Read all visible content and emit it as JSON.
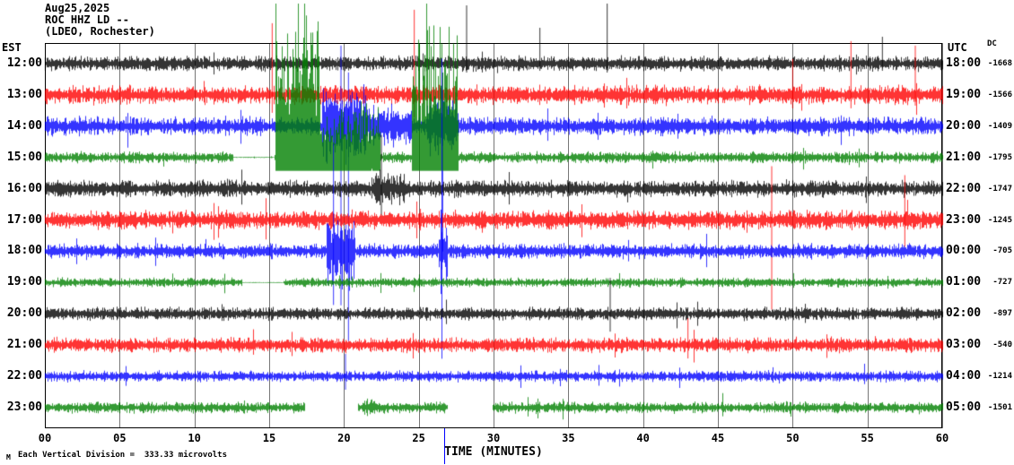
{
  "header": {
    "date": "Aug25,2025",
    "station": "ROC HHZ LD --",
    "location": "(LDEO, Rochester)"
  },
  "axes": {
    "left_label": "EST",
    "right_label": "UTC",
    "dc_label": "DC",
    "x_label": "TIME (MINUTES)",
    "x_ticks": [
      "00",
      "05",
      "10",
      "15",
      "20",
      "25",
      "30",
      "35",
      "40",
      "45",
      "50",
      "55",
      "60"
    ]
  },
  "footer": {
    "scale_marker": "M",
    "scale_note": "Each Vertical Division =  333.33 microvolts"
  },
  "cursor": {
    "minute": 26.7,
    "color": "#0000ff"
  },
  "chart_data": {
    "type": "line",
    "description": "Helicorder seismogram, 12 hourly traces of continuous seismic noise",
    "x_range_minutes": [
      0,
      60
    ],
    "minutes_per_row": 60,
    "grid_interval_minutes": 5,
    "rows": [
      {
        "est": "12:00",
        "utc": "18:00",
        "dc": "-1668",
        "color": "#000000",
        "amp": 8,
        "spikes": [
          [
            28.2,
            65,
            10
          ],
          [
            33.1,
            40,
            8
          ],
          [
            37.6,
            75,
            10
          ],
          [
            56.0,
            30,
            8
          ]
        ]
      },
      {
        "est": "13:00",
        "utc": "19:00",
        "dc": "-1566",
        "color": "#ff0000",
        "amp": 10,
        "spikes": [
          [
            15.2,
            80,
            20
          ],
          [
            24.7,
            95,
            25
          ],
          [
            50.0,
            40,
            15
          ],
          [
            53.9,
            60,
            15
          ],
          [
            58.2,
            55,
            12
          ]
        ]
      },
      {
        "est": "14:00",
        "utc": "20:00",
        "dc": "-1409",
        "color": "#0000ff",
        "amp": 10,
        "events": [
          [
            18.5,
            21.5,
            4
          ],
          [
            21.5,
            24.5,
            2.2
          ],
          [
            25.5,
            27.5,
            3
          ]
        ],
        "spikes": [
          [
            19.8,
            90,
            200
          ],
          [
            20.3,
            60,
            240
          ],
          [
            26.6,
            40,
            140
          ]
        ]
      },
      {
        "est": "15:00",
        "utc": "21:00",
        "dc": "-1795",
        "color": "#008000",
        "amp": 6,
        "clip": "up",
        "events": [
          [
            15.4,
            18.4,
            30
          ],
          [
            18.4,
            22.4,
            10
          ],
          [
            24.5,
            27.6,
            26
          ]
        ],
        "flats": [
          [
            12.6,
            15.3
          ]
        ]
      },
      {
        "est": "16:00",
        "utc": "22:00",
        "dc": "-1747",
        "color": "#000000",
        "amp": 9,
        "events": [
          [
            21.8,
            24.0,
            2
          ]
        ],
        "spikes": [
          [
            22.5,
            60,
            30
          ]
        ]
      },
      {
        "est": "17:00",
        "utc": "23:00",
        "dc": "-1245",
        "color": "#ff0000",
        "amp": 10,
        "spikes": [
          [
            48.6,
            60,
            100
          ],
          [
            57.5,
            50,
            30
          ]
        ]
      },
      {
        "est": "18:00",
        "utc": "00:00",
        "dc": "-705",
        "color": "#0000ff",
        "amp": 8,
        "events": [
          [
            18.8,
            20.7,
            5
          ],
          [
            26.3,
            26.9,
            6
          ]
        ],
        "spikes": [
          [
            26.55,
            215,
            120
          ],
          [
            19.3,
            120,
            60
          ]
        ]
      },
      {
        "est": "19:00",
        "utc": "01:00",
        "dc": "-727",
        "color": "#008000",
        "amp": 5,
        "flats": [
          [
            13.2,
            15.9
          ]
        ]
      },
      {
        "est": "20:00",
        "utc": "02:00",
        "dc": "-897",
        "color": "#000000",
        "amp": 7,
        "spikes": [
          [
            37.8,
            40,
            20
          ]
        ]
      },
      {
        "est": "21:00",
        "utc": "03:00",
        "dc": "-540",
        "color": "#ff0000",
        "amp": 8,
        "spikes": [
          [
            43.0,
            30,
            15
          ]
        ]
      },
      {
        "est": "22:00",
        "utc": "04:00",
        "dc": "-1214",
        "color": "#0000ff",
        "amp": 6,
        "spikes": [
          [
            20.1,
            25,
            15
          ]
        ]
      },
      {
        "est": "23:00",
        "utc": "05:00",
        "dc": "-1501",
        "color": "#008000",
        "amp": 6,
        "gaps": [
          [
            17.4,
            20.9
          ],
          [
            26.9,
            29.9
          ]
        ],
        "events": [
          [
            21.2,
            22.2,
            1.6
          ]
        ]
      }
    ]
  }
}
